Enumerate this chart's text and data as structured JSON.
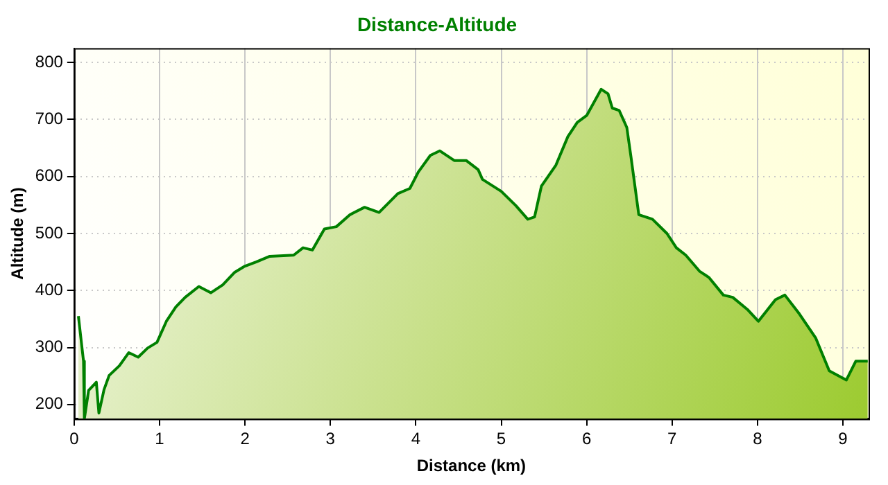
{
  "chart_data": {
    "type": "area",
    "title": "Distance-Altitude",
    "xlabel": "Distance (km)",
    "ylabel": "Altitude (m)",
    "xlim": [
      0,
      9.3
    ],
    "xticks": [
      0,
      1,
      2,
      3,
      4,
      5,
      6,
      7,
      8,
      9
    ],
    "ylim": [
      175,
      825
    ],
    "yticks": [
      200,
      300,
      400,
      500,
      600,
      700,
      800
    ],
    "grid": true,
    "legend": false,
    "series": [
      {
        "color": "#008000",
        "x": [
          0.05,
          0.11,
          0.12,
          0.17,
          0.26,
          0.29,
          0.35,
          0.41,
          0.53,
          0.64,
          0.75,
          0.86,
          0.97,
          1.08,
          1.19,
          1.3,
          1.46,
          1.6,
          1.74,
          1.88,
          1.99,
          2.13,
          2.29,
          2.57,
          2.68,
          2.79,
          2.93,
          3.07,
          3.23,
          3.4,
          3.57,
          3.79,
          3.93,
          4.03,
          4.17,
          4.28,
          4.45,
          4.59,
          4.73,
          4.78,
          5.0,
          5.17,
          5.31,
          5.39,
          5.47,
          5.64,
          5.78,
          5.89,
          6.0,
          6.17,
          6.25,
          6.3,
          6.38,
          6.47,
          6.52,
          6.61,
          6.77,
          6.94,
          7.05,
          7.16,
          7.32,
          7.43,
          7.6,
          7.71,
          7.88,
          8.01,
          8.21,
          8.32,
          8.49,
          8.68,
          8.84,
          9.04,
          9.15,
          9.29
        ],
        "values": [
          355,
          276,
          175,
          225,
          239,
          185,
          226,
          251,
          268,
          291,
          283,
          299,
          309,
          346,
          371,
          388,
          407,
          396,
          410,
          432,
          442,
          450,
          460,
          462,
          475,
          471,
          508,
          512,
          533,
          546,
          537,
          570,
          579,
          608,
          637,
          645,
          628,
          628,
          612,
          595,
          574,
          549,
          525,
          529,
          583,
          620,
          670,
          695,
          707,
          753,
          745,
          720,
          716,
          686,
          633,
          533,
          525,
          500,
          475,
          462,
          434,
          423,
          392,
          388,
          367,
          346,
          384,
          392,
          359,
          317,
          259,
          243,
          276,
          276
        ]
      }
    ]
  }
}
